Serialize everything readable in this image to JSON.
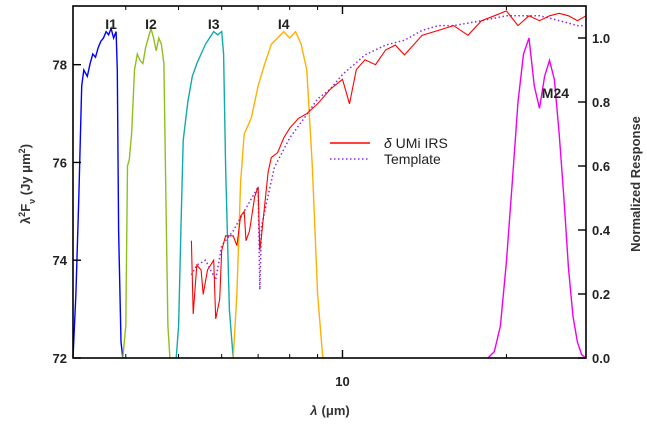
{
  "chart_data": {
    "type": "line",
    "x_axis": {
      "scale": "log",
      "label_text": "(μm)",
      "label_symbol": "λ",
      "ticks": [
        {
          "value": 10,
          "label": "10"
        }
      ],
      "range": [
        3.2,
        28
      ]
    },
    "y_left": {
      "label_prefix": "λ",
      "label_sup": "2",
      "label_F": "F",
      "label_sub": "ν",
      "label_units": " (Jy μm",
      "label_units_sup": "2",
      "label_close": ")",
      "range": [
        72,
        79.2
      ],
      "ticks": [
        "72",
        "74",
        "76",
        "78"
      ]
    },
    "y_right": {
      "label": "Normalized Response",
      "range": [
        0,
        1.1
      ],
      "ticks": [
        "0.0",
        "0.2",
        "0.4",
        "0.6",
        "0.8",
        "1.0"
      ]
    },
    "legend": {
      "placement": "center",
      "entries": [
        {
          "symbol": "δ",
          "text": " UMi IRS",
          "color": "#ff0000",
          "style": "solid"
        },
        {
          "text": "Template",
          "color": "#8a2be2",
          "style": "dotted"
        }
      ]
    },
    "bands": [
      {
        "label": "I1",
        "color": "#0000ff",
        "points": [
          [
            3.2,
            0.0
          ],
          [
            3.24,
            0.2
          ],
          [
            3.28,
            0.5
          ],
          [
            3.32,
            0.85
          ],
          [
            3.35,
            0.9
          ],
          [
            3.4,
            0.88
          ],
          [
            3.44,
            0.92
          ],
          [
            3.48,
            0.95
          ],
          [
            3.52,
            0.94
          ],
          [
            3.56,
            0.97
          ],
          [
            3.6,
            0.99
          ],
          [
            3.64,
            1.0
          ],
          [
            3.68,
            1.02
          ],
          [
            3.72,
            1.01
          ],
          [
            3.76,
            1.03
          ],
          [
            3.8,
            1.0
          ],
          [
            3.84,
            1.02
          ],
          [
            3.86,
            0.9
          ],
          [
            3.88,
            0.4
          ],
          [
            3.92,
            0.05
          ],
          [
            3.95,
            0.0
          ]
        ]
      },
      {
        "label": "I2",
        "color": "#8fbf1f",
        "points": [
          [
            3.95,
            0.0
          ],
          [
            4.0,
            0.1
          ],
          [
            4.03,
            0.6
          ],
          [
            4.06,
            0.62
          ],
          [
            4.1,
            0.7
          ],
          [
            4.15,
            0.9
          ],
          [
            4.2,
            0.95
          ],
          [
            4.25,
            0.93
          ],
          [
            4.3,
            0.92
          ],
          [
            4.35,
            0.97
          ],
          [
            4.4,
            1.0
          ],
          [
            4.45,
            1.03
          ],
          [
            4.5,
            1.0
          ],
          [
            4.55,
            0.96
          ],
          [
            4.6,
            1.0
          ],
          [
            4.65,
            0.98
          ],
          [
            4.7,
            0.92
          ],
          [
            4.74,
            0.5
          ],
          [
            4.78,
            0.1
          ],
          [
            4.82,
            0.0
          ]
        ]
      },
      {
        "label": "I3",
        "color": "#11aaaa",
        "points": [
          [
            4.95,
            0.0
          ],
          [
            5.0,
            0.1
          ],
          [
            5.05,
            0.4
          ],
          [
            5.1,
            0.68
          ],
          [
            5.2,
            0.8
          ],
          [
            5.3,
            0.88
          ],
          [
            5.4,
            0.92
          ],
          [
            5.5,
            0.95
          ],
          [
            5.6,
            0.98
          ],
          [
            5.7,
            1.0
          ],
          [
            5.8,
            1.02
          ],
          [
            5.9,
            1.01
          ],
          [
            6.0,
            1.02
          ],
          [
            6.05,
            0.95
          ],
          [
            6.1,
            0.6
          ],
          [
            6.2,
            0.15
          ],
          [
            6.3,
            0.0
          ]
        ]
      },
      {
        "label": "I4",
        "color": "#ffb000",
        "points": [
          [
            6.3,
            0.0
          ],
          [
            6.4,
            0.2
          ],
          [
            6.5,
            0.55
          ],
          [
            6.6,
            0.7
          ],
          [
            6.8,
            0.75
          ],
          [
            7.0,
            0.85
          ],
          [
            7.2,
            0.92
          ],
          [
            7.4,
            0.98
          ],
          [
            7.6,
            1.0
          ],
          [
            7.8,
            1.02
          ],
          [
            8.0,
            1.0
          ],
          [
            8.2,
            1.02
          ],
          [
            8.4,
            0.98
          ],
          [
            8.6,
            0.9
          ],
          [
            8.8,
            0.6
          ],
          [
            9.0,
            0.2
          ],
          [
            9.2,
            0.0
          ]
        ]
      },
      {
        "label": "M24",
        "color": "#ee00ee",
        "points": [
          [
            18.5,
            0.0
          ],
          [
            19.0,
            0.02
          ],
          [
            19.5,
            0.1
          ],
          [
            20.0,
            0.3
          ],
          [
            20.5,
            0.55
          ],
          [
            21.0,
            0.8
          ],
          [
            21.5,
            0.95
          ],
          [
            22.0,
            1.0
          ],
          [
            22.5,
            0.85
          ],
          [
            23.0,
            0.78
          ],
          [
            23.5,
            0.88
          ],
          [
            24.0,
            0.93
          ],
          [
            24.5,
            0.87
          ],
          [
            25.0,
            0.7
          ],
          [
            25.5,
            0.5
          ],
          [
            26.0,
            0.28
          ],
          [
            26.5,
            0.13
          ],
          [
            27.0,
            0.05
          ],
          [
            27.5,
            0.01
          ],
          [
            28.0,
            0.0
          ]
        ]
      }
    ],
    "spectrum": [
      [
        5.28,
        74.4
      ],
      [
        5.32,
        72.9
      ],
      [
        5.4,
        73.9
      ],
      [
        5.5,
        73.8
      ],
      [
        5.55,
        73.3
      ],
      [
        5.65,
        73.8
      ],
      [
        5.8,
        74.0
      ],
      [
        5.85,
        72.8
      ],
      [
        5.95,
        73.2
      ],
      [
        6.0,
        74.2
      ],
      [
        6.1,
        74.5
      ],
      [
        6.3,
        74.5
      ],
      [
        6.4,
        74.3
      ],
      [
        6.5,
        74.9
      ],
      [
        6.6,
        75.0
      ],
      [
        6.65,
        74.4
      ],
      [
        6.75,
        74.6
      ],
      [
        6.9,
        75.3
      ],
      [
        7.0,
        75.5
      ],
      [
        7.05,
        74.2
      ],
      [
        7.1,
        74.5
      ],
      [
        7.3,
        75.8
      ],
      [
        7.4,
        76.1
      ],
      [
        7.6,
        76.2
      ],
      [
        7.8,
        76.5
      ],
      [
        8.0,
        76.7
      ],
      [
        8.3,
        76.9
      ],
      [
        8.6,
        77.0
      ],
      [
        9.0,
        77.2
      ],
      [
        9.5,
        77.5
      ],
      [
        10.0,
        77.7
      ],
      [
        10.3,
        77.2
      ],
      [
        10.6,
        77.9
      ],
      [
        11.0,
        78.1
      ],
      [
        11.5,
        78.0
      ],
      [
        12.0,
        78.3
      ],
      [
        12.5,
        78.4
      ],
      [
        13.0,
        78.2
      ],
      [
        14.0,
        78.6
      ],
      [
        15.0,
        78.7
      ],
      [
        16.0,
        78.8
      ],
      [
        17.0,
        78.6
      ],
      [
        18.0,
        78.9
      ],
      [
        19.0,
        79.0
      ],
      [
        20.0,
        79.1
      ],
      [
        21.0,
        78.8
      ],
      [
        22.0,
        79.0
      ],
      [
        23.0,
        78.9
      ],
      [
        24.0,
        79.0
      ],
      [
        25.0,
        79.05
      ],
      [
        26.0,
        79.0
      ],
      [
        27.0,
        78.9
      ],
      [
        28.0,
        79.0
      ]
    ],
    "template": [
      [
        5.28,
        73.7
      ],
      [
        5.4,
        73.9
      ],
      [
        5.6,
        74.0
      ],
      [
        5.85,
        73.6
      ],
      [
        6.0,
        74.3
      ],
      [
        6.3,
        74.6
      ],
      [
        6.6,
        75.0
      ],
      [
        7.0,
        75.5
      ],
      [
        7.05,
        73.4
      ],
      [
        7.1,
        74.7
      ],
      [
        7.5,
        75.9
      ],
      [
        8.0,
        76.5
      ],
      [
        8.5,
        76.9
      ],
      [
        9.0,
        77.3
      ],
      [
        9.5,
        77.5
      ],
      [
        10.0,
        77.8
      ],
      [
        10.5,
        78.0
      ],
      [
        11.0,
        78.2
      ],
      [
        12.0,
        78.4
      ],
      [
        13.0,
        78.5
      ],
      [
        14.0,
        78.7
      ],
      [
        15.0,
        78.8
      ],
      [
        16.0,
        78.8
      ],
      [
        17.0,
        78.85
      ],
      [
        18.0,
        78.9
      ],
      [
        19.0,
        78.95
      ],
      [
        20.0,
        79.0
      ],
      [
        21.0,
        79.0
      ],
      [
        22.0,
        79.0
      ],
      [
        23.0,
        79.0
      ],
      [
        24.0,
        78.95
      ],
      [
        25.0,
        78.9
      ],
      [
        26.0,
        78.85
      ],
      [
        27.0,
        78.8
      ],
      [
        28.0,
        78.8
      ]
    ],
    "grid": false
  }
}
